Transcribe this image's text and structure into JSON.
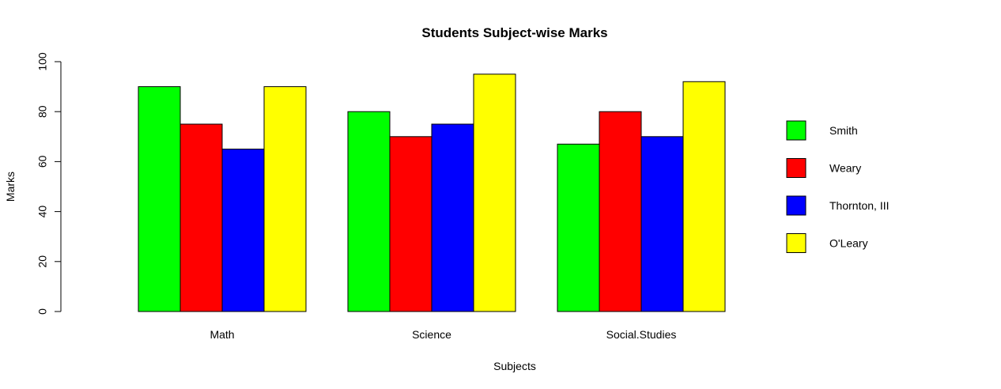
{
  "chart_data": {
    "type": "bar",
    "title": "Students Subject-wise Marks",
    "xlabel": "Subjects",
    "ylabel": "Marks",
    "ylim": [
      0,
      100
    ],
    "yticks": [
      0,
      20,
      40,
      60,
      80,
      100
    ],
    "categories": [
      "Math",
      "Science",
      "Social.Studies"
    ],
    "series": [
      {
        "name": "Smith",
        "color": "#00ff00",
        "values": [
          90,
          80,
          67
        ]
      },
      {
        "name": "Weary",
        "color": "#ff0000",
        "values": [
          75,
          70,
          80
        ]
      },
      {
        "name": "Thornton, III",
        "color": "#0000ff",
        "values": [
          65,
          75,
          70
        ]
      },
      {
        "name": "O'Leary",
        "color": "#ffff00",
        "values": [
          90,
          95,
          92
        ]
      }
    ],
    "grid": false,
    "legend_position": "right"
  }
}
